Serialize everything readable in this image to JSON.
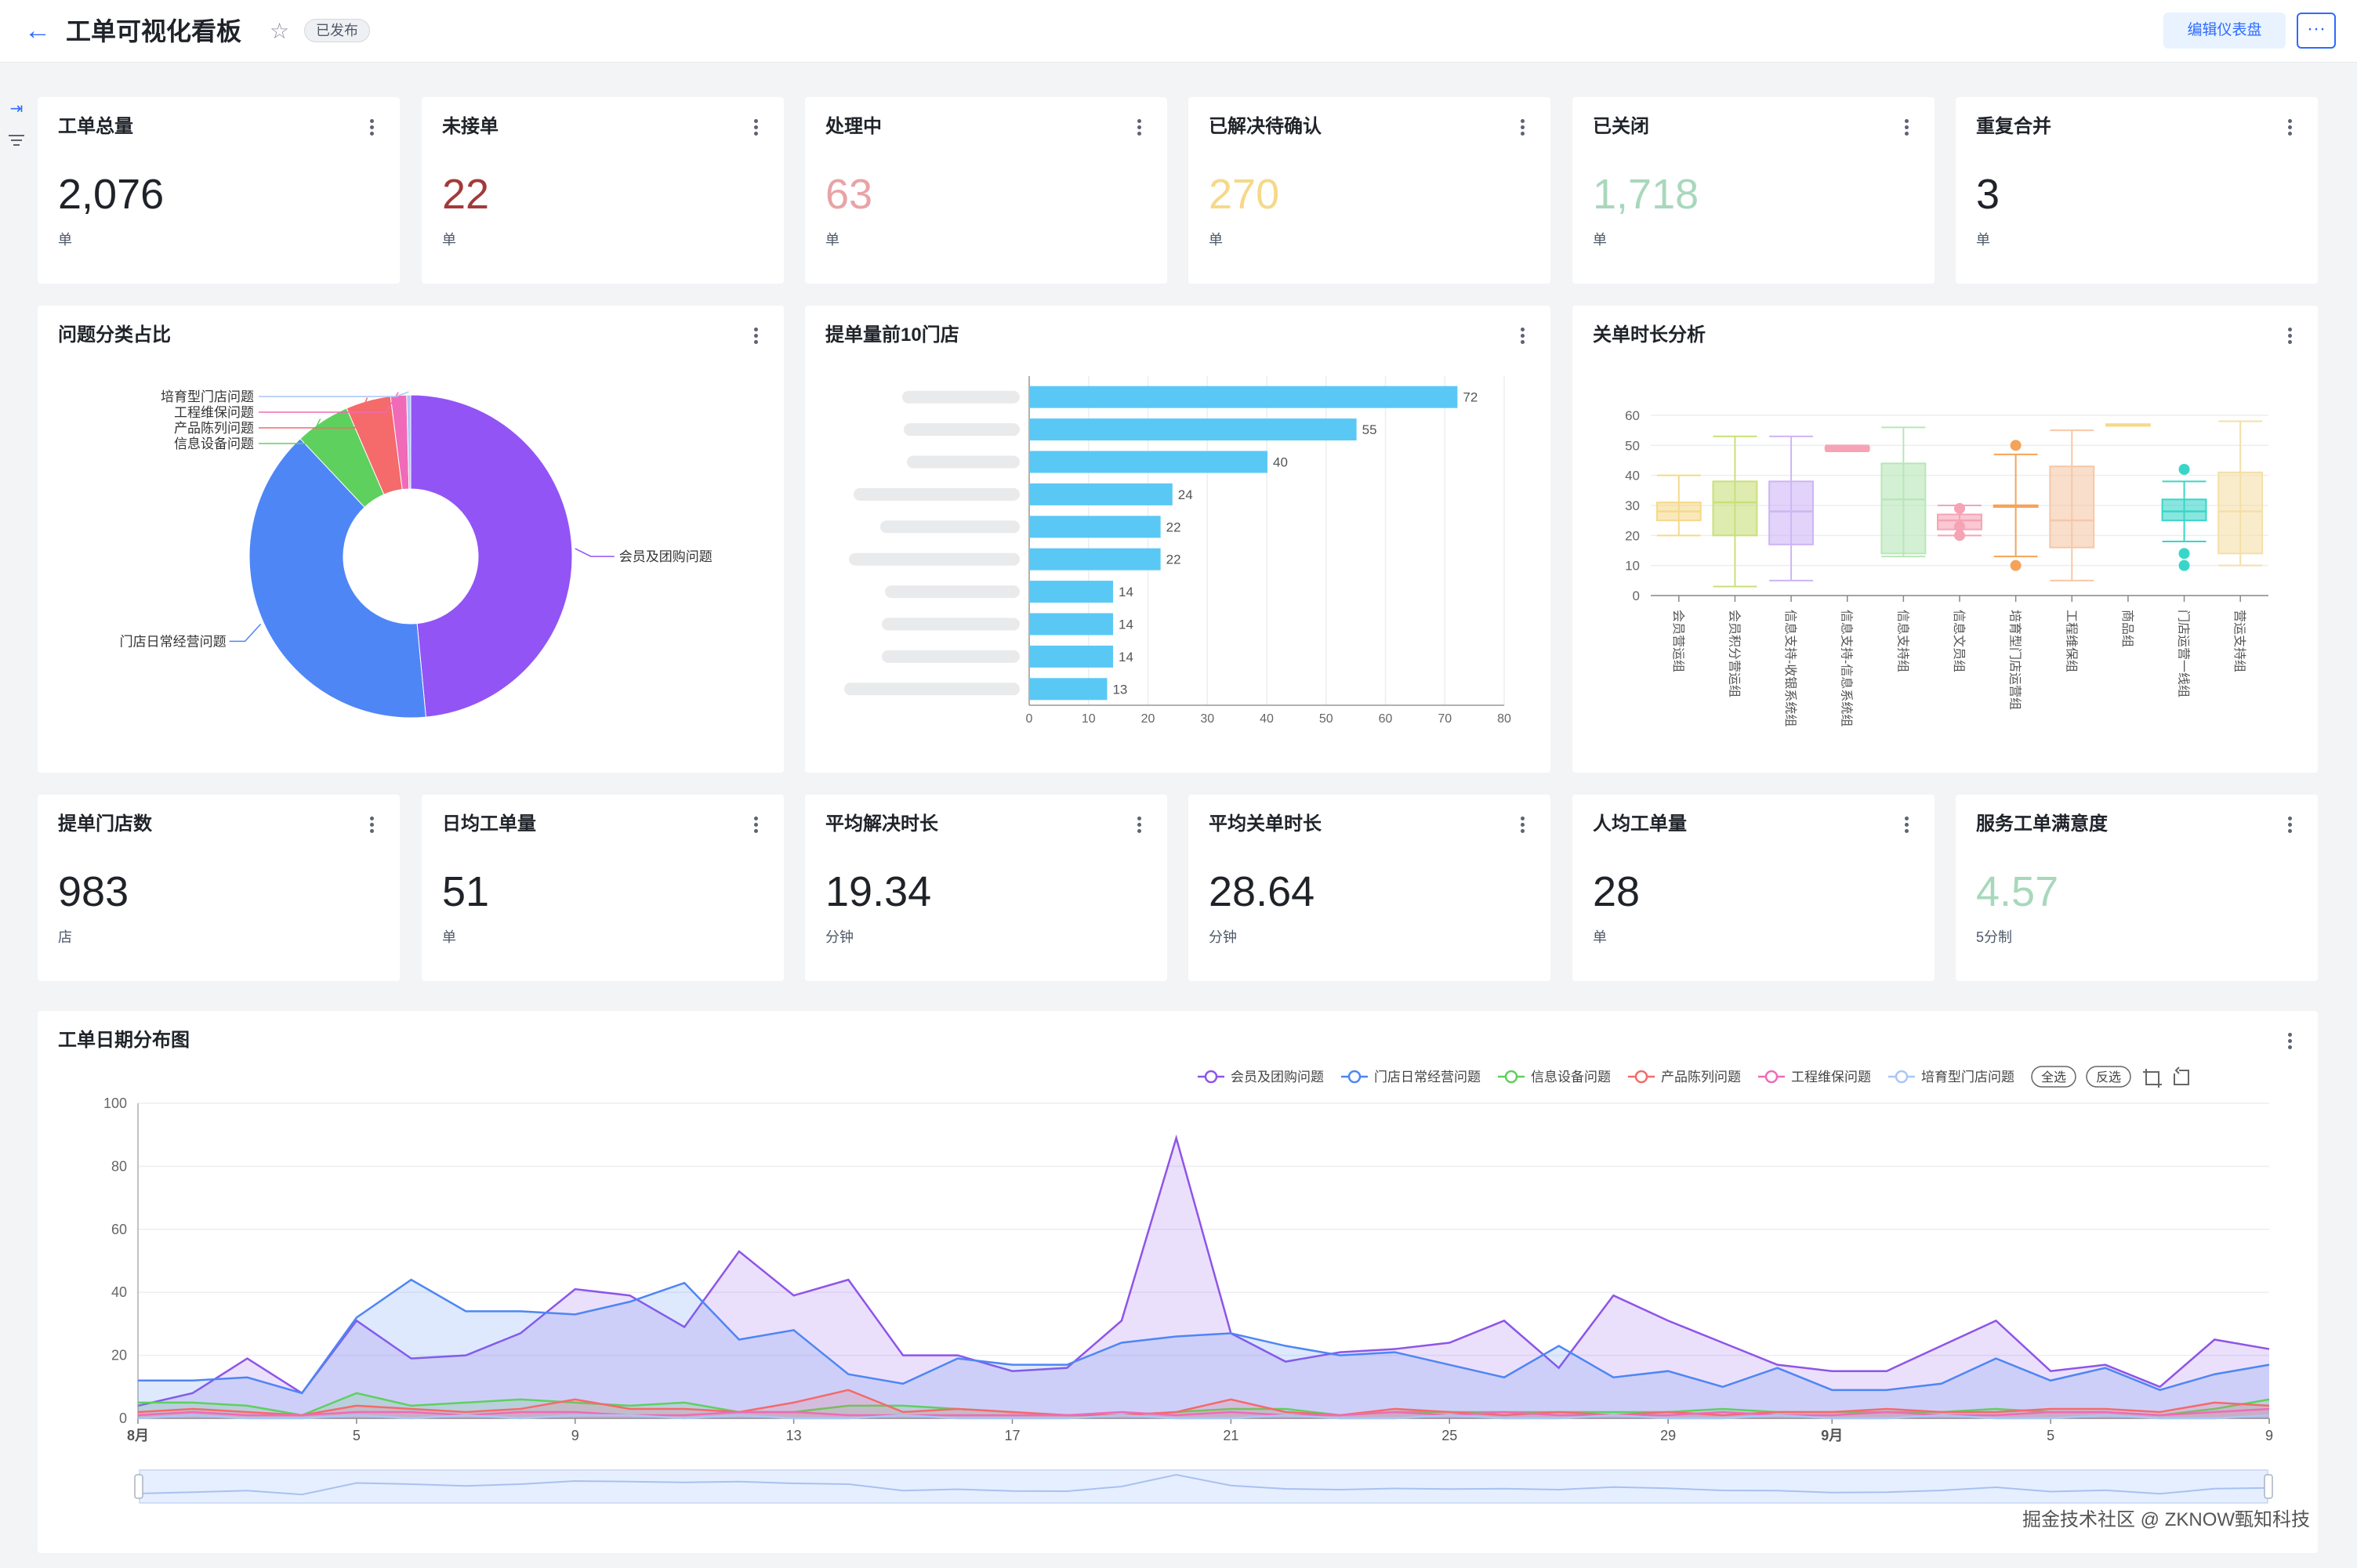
{
  "header": {
    "title": "工单可视化看板",
    "status_badge": "已发布",
    "edit_label": "编辑仪表盘",
    "more_label": "···"
  },
  "colors": {
    "accent": "#2f6bff",
    "red": "#a33a3a",
    "pink": "#e8a3a6",
    "yellow": "#f5d98a",
    "green": "#a8d8bc"
  },
  "kpis_top": [
    {
      "title": "工单总量",
      "value": "2,076",
      "unit": "单",
      "color": "#1f2329"
    },
    {
      "title": "未接单",
      "value": "22",
      "unit": "单",
      "color": "#a33a3a"
    },
    {
      "title": "处理中",
      "value": "63",
      "unit": "单",
      "color": "#e8a3a6"
    },
    {
      "title": "已解决待确认",
      "value": "270",
      "unit": "单",
      "color": "#f5d98a"
    },
    {
      "title": "已关闭",
      "value": "1,718",
      "unit": "单",
      "color": "#a8d8bc"
    },
    {
      "title": "重复合并",
      "value": "3",
      "unit": "单",
      "color": "#1f2329"
    }
  ],
  "kpis_bottom": [
    {
      "title": "提单门店数",
      "value": "983",
      "unit": "店",
      "color": "#1f2329"
    },
    {
      "title": "日均工单量",
      "value": "51",
      "unit": "单",
      "color": "#1f2329"
    },
    {
      "title": "平均解决时长",
      "value": "19.34",
      "unit": "分钟",
      "color": "#1f2329"
    },
    {
      "title": "平均关单时长",
      "value": "28.64",
      "unit": "分钟",
      "color": "#1f2329"
    },
    {
      "title": "人均工单量",
      "value": "28",
      "unit": "单",
      "color": "#1f2329"
    },
    {
      "title": "服务工单满意度",
      "value": "4.57",
      "unit": "5分制",
      "color": "#a8d8bc"
    }
  ],
  "chart_titles": {
    "pie": "问题分类占比",
    "bar": "提单量前10门店",
    "box": "关单时长分析",
    "line": "工单日期分布图"
  },
  "legend_actions": {
    "select_all": "全选",
    "invert": "反选"
  },
  "watermark": "掘金技术社区 @ ZKNOW甄知科技",
  "chart_data": [
    {
      "type": "pie",
      "title": "问题分类占比",
      "slices": [
        {
          "label": "会员及团购问题",
          "value": 48.5,
          "color": "#9254f5"
        },
        {
          "label": "门店日常经营问题",
          "value": 39.5,
          "color": "#4e86f5"
        },
        {
          "label": "信息设备问题",
          "value": 5.5,
          "color": "#5ed05e"
        },
        {
          "label": "产品陈列问题",
          "value": 4.5,
          "color": "#f56a6a"
        },
        {
          "label": "工程维保问题",
          "value": 1.6,
          "color": "#f06ab8"
        },
        {
          "label": "培育型门店问题",
          "value": 0.4,
          "color": "#a9c6f7"
        }
      ]
    },
    {
      "type": "bar",
      "title": "提单量前10门店",
      "orientation": "horizontal",
      "values": [
        72,
        55,
        40,
        24,
        22,
        22,
        14,
        14,
        14,
        13
      ],
      "xlim": [
        0,
        80
      ],
      "xticks": [
        0,
        10,
        20,
        30,
        40,
        50,
        60,
        70,
        80
      ],
      "color": "#5ac8f5"
    },
    {
      "type": "box",
      "title": "关单时长分析",
      "ylim": [
        0,
        60
      ],
      "yticks": [
        0,
        10,
        20,
        30,
        40,
        50,
        60
      ],
      "categories": [
        "会员营运组",
        "会员积分营运组",
        "信息支持-收银系统组",
        "信息支持-信息系统组",
        "信息支持组",
        "信息文员组",
        "培育型门店运营组",
        "工程维保组",
        "商品组",
        "门店运营一线组",
        "营运支持组"
      ],
      "boxes": [
        {
          "min": 20,
          "q1": 25,
          "median": 28,
          "q3": 31,
          "max": 40,
          "color": "#f5d98a"
        },
        {
          "min": 3,
          "q1": 20,
          "median": 31,
          "q3": 38,
          "max": 53,
          "color": "#c9e07a"
        },
        {
          "min": 5,
          "q1": 17,
          "median": 28,
          "q3": 38,
          "max": 53,
          "color": "#cdb5f5"
        },
        {
          "min": 48,
          "q1": 48.5,
          "median": 49,
          "q3": 49.5,
          "max": 50,
          "color": "#f5a3b5"
        },
        {
          "min": 13,
          "q1": 14,
          "median": 32,
          "q3": 44,
          "max": 56,
          "color": "#b8e6b8"
        },
        {
          "min": 20,
          "q1": 22,
          "median": 25,
          "q3": 27,
          "max": 30,
          "color": "#f5a3b5",
          "outliers": [
            20,
            23,
            29
          ]
        },
        {
          "min": 13,
          "q1": 30,
          "median": 30,
          "q3": 30,
          "max": 47,
          "color": "#f5a35a",
          "outliers": [
            10,
            50
          ]
        },
        {
          "min": 5,
          "q1": 16,
          "median": 25,
          "q3": 43,
          "max": 55,
          "color": "#f5c8a8"
        },
        {
          "min": 57,
          "q1": 57,
          "median": 57,
          "q3": 57,
          "max": 57,
          "color": "#f5d98a"
        },
        {
          "min": 18,
          "q1": 25,
          "median": 28,
          "q3": 32,
          "max": 38,
          "color": "#38d6c8",
          "outliers": [
            10,
            14,
            42
          ]
        },
        {
          "min": 10,
          "q1": 14,
          "median": 28,
          "q3": 41,
          "max": 58,
          "color": "#f5dfa8"
        }
      ]
    },
    {
      "type": "area",
      "title": "工单日期分布图",
      "ylim": [
        0,
        100
      ],
      "yticks": [
        0,
        20,
        40,
        60,
        80,
        100
      ],
      "x": [
        "8/1",
        "8/2",
        "8/3",
        "8/4",
        "8/5",
        "8/6",
        "8/7",
        "8/8",
        "8/9",
        "8/10",
        "8/11",
        "8/12",
        "8/13",
        "8/14",
        "8/15",
        "8/16",
        "8/17",
        "8/18",
        "8/19",
        "8/20",
        "8/21",
        "8/22",
        "8/23",
        "8/24",
        "8/25",
        "8/26",
        "8/27",
        "8/28",
        "8/29",
        "8/30",
        "8/31",
        "9/1",
        "9/2",
        "9/3",
        "9/4",
        "9/5",
        "9/6",
        "9/7",
        "9/8",
        "9/9"
      ],
      "xtick_labels": [
        {
          "at": "8/1",
          "label": "8月"
        },
        {
          "at": "8/5",
          "label": "5"
        },
        {
          "at": "8/9",
          "label": "9"
        },
        {
          "at": "8/13",
          "label": "13"
        },
        {
          "at": "8/17",
          "label": "17"
        },
        {
          "at": "8/21",
          "label": "21"
        },
        {
          "at": "8/25",
          "label": "25"
        },
        {
          "at": "8/29",
          "label": "29"
        },
        {
          "at": "9/1",
          "label": "9月"
        },
        {
          "at": "9/5",
          "label": "5"
        },
        {
          "at": "9/9",
          "label": "9"
        }
      ],
      "series": [
        {
          "name": "会员及团购问题",
          "color": "#8e54e9",
          "values": [
            4,
            8,
            19,
            8,
            31,
            19,
            20,
            27,
            41,
            39,
            29,
            53,
            39,
            44,
            20,
            20,
            15,
            16,
            31,
            89,
            27,
            18,
            21,
            22,
            24,
            31,
            16,
            39,
            31,
            24,
            17,
            15,
            15,
            23,
            31,
            15,
            17,
            10,
            25,
            22
          ]
        },
        {
          "name": "门店日常经营问题",
          "color": "#4e86f5",
          "values": [
            12,
            12,
            13,
            8,
            32,
            44,
            34,
            34,
            33,
            37,
            43,
            25,
            28,
            14,
            11,
            19,
            17,
            17,
            24,
            26,
            27,
            23,
            20,
            21,
            17,
            13,
            23,
            13,
            15,
            10,
            16,
            9,
            9,
            11,
            19,
            12,
            16,
            9,
            14,
            17
          ]
        },
        {
          "name": "信息设备问题",
          "color": "#5ed05e",
          "values": [
            5,
            5,
            4,
            1,
            8,
            4,
            5,
            6,
            5,
            4,
            5,
            2,
            2,
            4,
            4,
            3,
            2,
            1,
            1,
            2,
            3,
            3,
            1,
            2,
            2,
            2,
            2,
            2,
            2,
            3,
            2,
            2,
            2,
            2,
            3,
            2,
            2,
            1,
            3,
            6
          ]
        },
        {
          "name": "产品陈列问题",
          "color": "#f56a6a",
          "values": [
            2,
            3,
            2,
            1,
            4,
            3,
            2,
            3,
            6,
            3,
            3,
            2,
            5,
            9,
            2,
            3,
            2,
            1,
            1,
            2,
            6,
            2,
            1,
            3,
            2,
            1,
            2,
            1,
            2,
            1,
            2,
            2,
            3,
            2,
            2,
            3,
            3,
            2,
            5,
            4
          ]
        },
        {
          "name": "工程维保问题",
          "color": "#f06ab8",
          "values": [
            1,
            2,
            1,
            1,
            2,
            2,
            1,
            2,
            2,
            1,
            1,
            2,
            2,
            1,
            1,
            1,
            1,
            1,
            2,
            1,
            2,
            1,
            1,
            2,
            1,
            2,
            1,
            1,
            1,
            2,
            1,
            1,
            2,
            1,
            1,
            2,
            2,
            1,
            2,
            3
          ]
        },
        {
          "name": "培育型门店问题",
          "color": "#a9c6f7",
          "values": [
            0,
            1,
            0,
            0,
            1,
            0,
            1,
            0,
            1,
            1,
            0,
            1,
            0,
            0,
            1,
            0,
            0,
            0,
            1,
            0,
            0,
            1,
            0,
            0,
            1,
            0,
            0,
            1,
            0,
            0,
            1,
            0,
            0,
            1,
            0,
            0,
            1,
            0,
            0,
            1
          ]
        }
      ]
    }
  ]
}
